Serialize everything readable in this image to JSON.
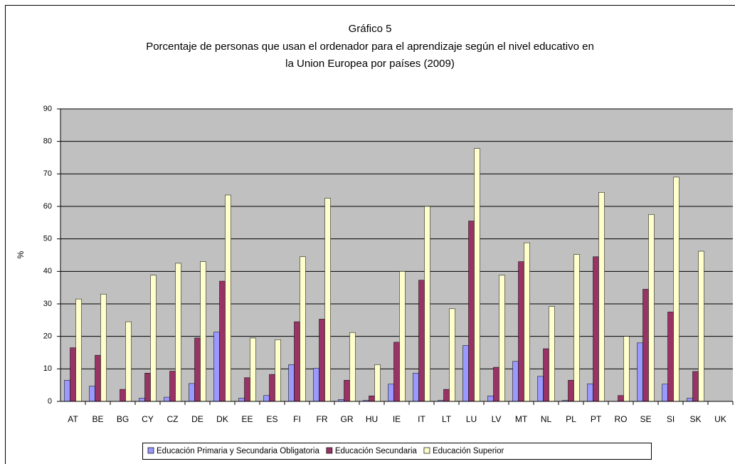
{
  "chart_data": {
    "type": "bar",
    "title": "Gráfico 5",
    "subtitle": [
      "Porcentaje de personas que usan el ordenador para el aprendizaje según el nivel educativo en",
      "la Union Europea por países (2009)"
    ],
    "ylabel": "%",
    "categories": [
      "AT",
      "BE",
      "BG",
      "CY",
      "CZ",
      "DE",
      "DK",
      "EE",
      "ES",
      "FI",
      "FR",
      "GR",
      "HU",
      "IE",
      "IT",
      "LT",
      "LU",
      "LV",
      "MT",
      "NL",
      "PL",
      "PT",
      "RO",
      "SE",
      "SI",
      "SK",
      "UK"
    ],
    "series": [
      {
        "name": "Educación Primaria y Secundaria Obligatoria",
        "color": "#9999ff",
        "values": [
          6.5,
          4.7,
          0,
          1,
          1.3,
          5.5,
          21.3,
          1,
          1.8,
          11.3,
          10.2,
          0.6,
          0.3,
          5.3,
          8.7,
          0.3,
          17.2,
          1.7,
          12.3,
          7.7,
          0.3,
          5.4,
          0,
          18,
          5.3,
          1,
          null
        ]
      },
      {
        "name": "Educación Secundaria",
        "color": "#993366",
        "values": [
          16.5,
          14.2,
          3.7,
          8.7,
          9.3,
          19.5,
          37,
          7.3,
          8.3,
          24.5,
          25.3,
          6.5,
          1.7,
          18.2,
          37.3,
          3.7,
          55.5,
          10.5,
          43,
          16.2,
          6.5,
          44.5,
          1.8,
          34.5,
          27.5,
          9.2,
          null
        ]
      },
      {
        "name": "Educación Superior",
        "color": "#ffffcc",
        "values": [
          31.5,
          33,
          24.5,
          38.8,
          42.5,
          43,
          63.5,
          19.5,
          19,
          44.5,
          62.5,
          21.2,
          11.3,
          40,
          60,
          28.5,
          77.8,
          38.8,
          48.8,
          29.2,
          45.2,
          64.3,
          20,
          57.5,
          69,
          46.2,
          null
        ]
      }
    ],
    "ylim": [
      0,
      90
    ],
    "yticks": [
      0,
      10,
      20,
      30,
      40,
      50,
      60,
      70,
      80,
      90
    ],
    "grid": true,
    "legend": "bottom"
  }
}
